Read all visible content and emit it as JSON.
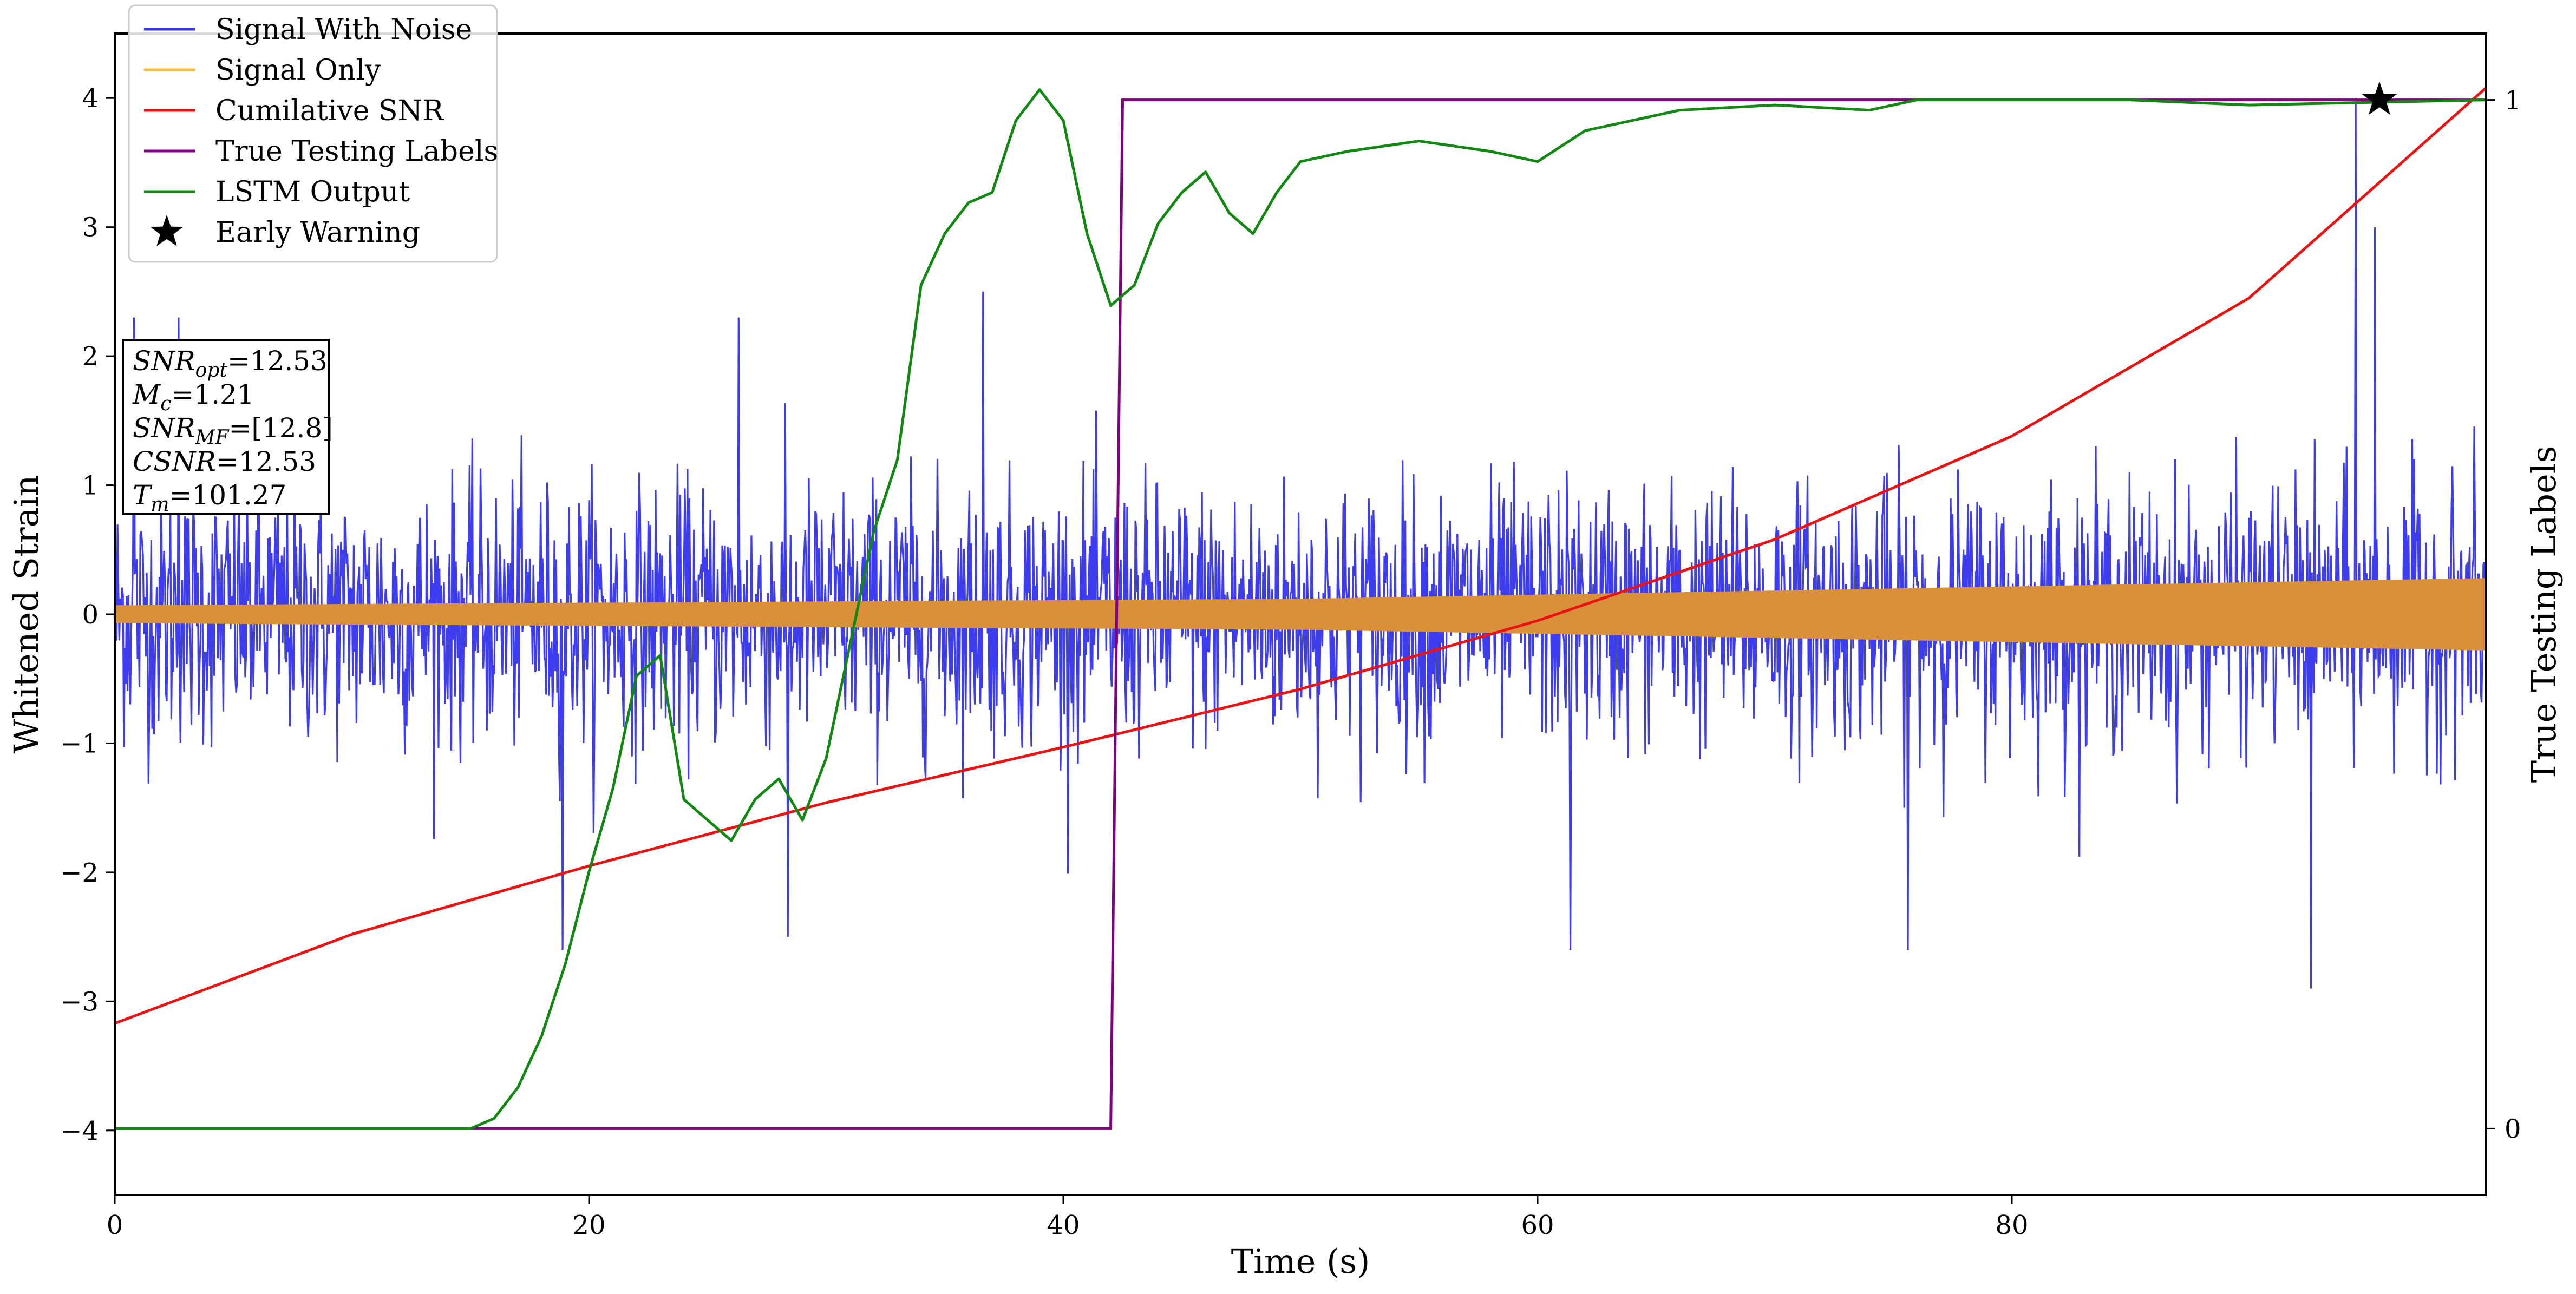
{
  "chart_data": {
    "type": "line",
    "xlabel": "Time (s)",
    "ylabel": "Whitened Strain",
    "y2label": "True Testing Labels",
    "xlim": [
      0,
      100
    ],
    "ylim": [
      -4.5,
      4.5
    ],
    "y2lim": [
      -0.0645,
      1.0645
    ],
    "x_ticks": [
      0,
      20,
      40,
      60,
      80
    ],
    "y_ticks": [
      -4,
      -3,
      -2,
      -1,
      0,
      1,
      2,
      3,
      4
    ],
    "y2_ticks": [
      0,
      1
    ],
    "grid": false,
    "legend_position": "top-left",
    "legend": [
      {
        "label": "Signal With Noise",
        "color": "#3333ee",
        "marker": "line"
      },
      {
        "label": "Signal Only",
        "color": "#ffb833",
        "marker": "line"
      },
      {
        "label": "Cumilative SNR",
        "color": "#ee1111",
        "marker": "line"
      },
      {
        "label": "True Testing Labels",
        "color": "#800080",
        "marker": "line"
      },
      {
        "label": "LSTM Output",
        "color": "#118811",
        "marker": "line"
      },
      {
        "label": "Early Warning",
        "color": "#000000",
        "marker": "star"
      }
    ],
    "annotation_box": {
      "lines": [
        {
          "sym": "SNR",
          "sub": "opt",
          "val": "=12.53"
        },
        {
          "sym": "M",
          "sub": "c",
          "val": "=1.21"
        },
        {
          "sym": "SNR",
          "sub": "MF",
          "val": "=[12.8]"
        },
        {
          "sym": "CSNR",
          "sub": "",
          "val": "=12.53"
        },
        {
          "sym": "T",
          "sub": "m",
          "val": "=101.27"
        }
      ]
    },
    "series": [
      {
        "name": "Signal With Noise",
        "color": "#3333ee",
        "style": "noise",
        "x_range": [
          0,
          100
        ],
        "typical_abs_range": [
          -1.3,
          1.3
        ],
        "notable_peaks": [
          [
            0.8,
            2.3
          ],
          [
            2.7,
            2.3
          ],
          [
            18.9,
            -2.6
          ],
          [
            26.3,
            2.3
          ],
          [
            28.4,
            -2.5
          ],
          [
            36.6,
            2.5
          ],
          [
            61.4,
            -2.6
          ],
          [
            75.6,
            -2.6
          ],
          [
            94.5,
            4.0
          ],
          [
            95.3,
            3.0
          ],
          [
            92.6,
            -2.9
          ]
        ]
      },
      {
        "name": "Signal Only",
        "color": "#ffb833",
        "style": "envelope",
        "x": [
          0,
          50,
          100
        ],
        "amplitude": [
          0.07,
          0.12,
          0.28
        ]
      },
      {
        "name": "Cumilative SNR",
        "color": "#ee1111",
        "axis": "left",
        "x": [
          0,
          10,
          20,
          30,
          40,
          50,
          60,
          70,
          80,
          90,
          100
        ],
        "values": [
          -3.17,
          -2.48,
          -1.95,
          -1.46,
          -1.03,
          -0.58,
          -0.05,
          0.58,
          1.38,
          2.45,
          4.08
        ]
      },
      {
        "name": "True Testing Labels",
        "color": "#800080",
        "axis": "right",
        "x": [
          0,
          42.0,
          42.5,
          100
        ],
        "values": [
          0,
          0,
          1,
          1
        ]
      },
      {
        "name": "LSTM Output",
        "color": "#118811",
        "axis": "right",
        "x": [
          0,
          15,
          16,
          17,
          18,
          19,
          20,
          21,
          22,
          23,
          24,
          25,
          26,
          27,
          28,
          29,
          30,
          31,
          32,
          33,
          34,
          35,
          36,
          37,
          38,
          39,
          40,
          41,
          42,
          43,
          44,
          45,
          46,
          47,
          48,
          49,
          50,
          52,
          55,
          58,
          60,
          62,
          64,
          66,
          70,
          74,
          76,
          80,
          85,
          90,
          100
        ],
        "values": [
          0,
          0,
          0.01,
          0.04,
          0.09,
          0.16,
          0.25,
          0.33,
          0.44,
          0.46,
          0.32,
          0.3,
          0.28,
          0.32,
          0.34,
          0.3,
          0.36,
          0.47,
          0.58,
          0.65,
          0.82,
          0.87,
          0.9,
          0.91,
          0.98,
          1.01,
          0.98,
          0.87,
          0.8,
          0.82,
          0.88,
          0.91,
          0.93,
          0.89,
          0.87,
          0.91,
          0.94,
          0.95,
          0.96,
          0.95,
          0.94,
          0.97,
          0.98,
          0.99,
          0.995,
          0.99,
          1.0,
          1.0,
          1.0,
          0.995,
          1.0
        ]
      },
      {
        "name": "Early Warning",
        "color": "#000000",
        "style": "marker",
        "axis": "right",
        "x": [
          95.5
        ],
        "values": [
          1
        ]
      }
    ]
  }
}
